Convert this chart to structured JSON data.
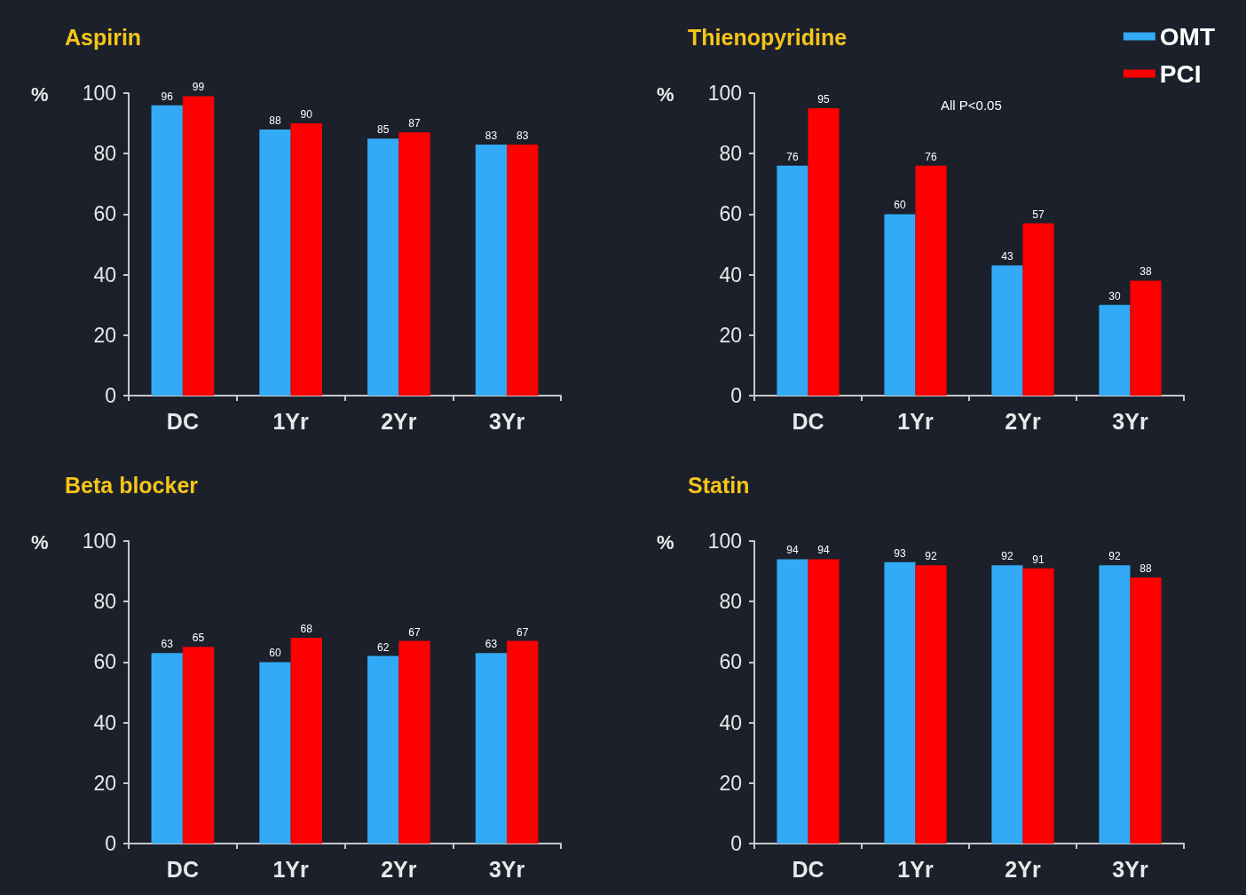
{
  "chart_data": [
    {
      "type": "bar",
      "title": "Aspirin",
      "ylabel": "%",
      "categories": [
        "DC",
        "1Yr",
        "2Yr",
        "3Yr"
      ],
      "series": [
        {
          "color": "#33aaf5",
          "values": [
            96,
            88,
            85,
            83
          ]
        },
        {
          "color": "#ff0000",
          "values": [
            99,
            90,
            87,
            83
          ]
        }
      ],
      "ylim": [
        0,
        100
      ],
      "yticks": [
        0,
        20,
        40,
        60,
        80,
        100
      ],
      "grid": false,
      "legend": false,
      "data_labels": true
    },
    {
      "type": "bar",
      "title": "Thienopyridine",
      "ylabel": "%",
      "categories": [
        "DC",
        "1Yr",
        "2Yr",
        "3Yr"
      ],
      "series": [
        {
          "name": "OMT",
          "color": "#33aaf5",
          "values": [
            76,
            60,
            43,
            30
          ]
        },
        {
          "name": "PCI",
          "color": "#ff0000",
          "values": [
            95,
            76,
            57,
            38
          ]
        }
      ],
      "ylim": [
        0,
        100
      ],
      "yticks": [
        0,
        20,
        40,
        60,
        80,
        100
      ],
      "grid": false,
      "legend": "top right",
      "data_labels": true,
      "annotations": [
        "All P<0.05"
      ]
    },
    {
      "type": "bar",
      "title": "Beta blocker",
      "ylabel": "%",
      "categories": [
        "DC",
        "1Yr",
        "2Yr",
        "3Yr"
      ],
      "series": [
        {
          "color": "#33aaf5",
          "values": [
            63,
            60,
            62,
            63
          ]
        },
        {
          "color": "#ff0000",
          "values": [
            65,
            68,
            67,
            67
          ]
        }
      ],
      "ylim": [
        0,
        100
      ],
      "yticks": [
        0,
        20,
        40,
        60,
        80,
        100
      ],
      "grid": false,
      "legend": false,
      "data_labels": true
    },
    {
      "type": "bar",
      "title": "Statin",
      "ylabel": "%",
      "categories": [
        "DC",
        "1Yr",
        "2Yr",
        "3Yr"
      ],
      "series": [
        {
          "color": "#33aaf5",
          "values": [
            94,
            93,
            92,
            92
          ]
        },
        {
          "color": "#ff0000",
          "values": [
            94,
            92,
            91,
            88
          ]
        }
      ],
      "ylim": [
        0,
        100
      ],
      "yticks": [
        0,
        20,
        40,
        60,
        80,
        100
      ],
      "grid": false,
      "legend": false,
      "data_labels": true
    }
  ]
}
